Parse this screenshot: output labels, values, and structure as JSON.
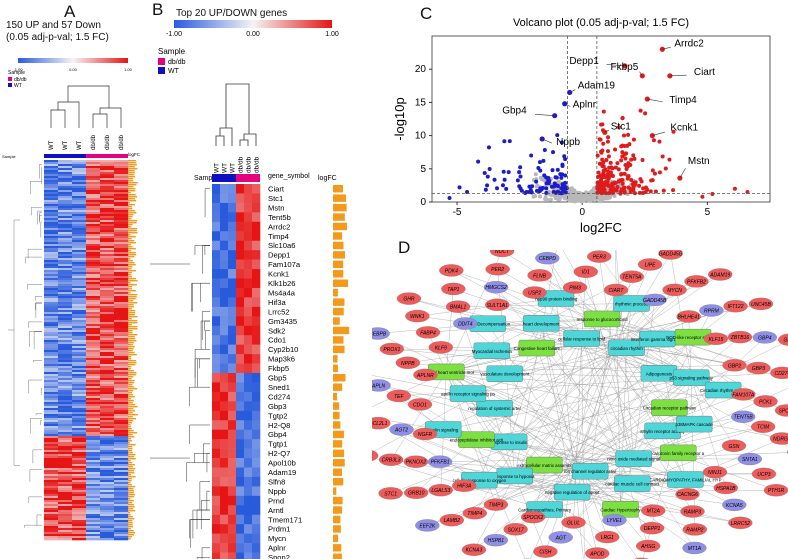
{
  "panelA": {
    "letter": "A",
    "title_line1": "150 UP and 57 Down",
    "title_line2": "(0.05 adj-p-val; 1.5 FC)",
    "scale_ticks": [
      "-1.00",
      "0.00",
      "1.00"
    ],
    "legend_title": "Sample",
    "legend_items": [
      {
        "label": "db/db",
        "color": "#e6007e"
      },
      {
        "label": "WT",
        "color": "#1010c0"
      }
    ],
    "col_labels": [
      "WT",
      "WT",
      "WT",
      "db/db",
      "db/db",
      "db/db"
    ],
    "sample_label": "Sample",
    "logfc_label": "logFC"
  },
  "panelB": {
    "letter": "B",
    "title": "Top 20 UP/DOWN genes",
    "scale_ticks": [
      "-1.00",
      "0.00",
      "1.00"
    ],
    "legend_title": "Sample",
    "legend_items": [
      {
        "label": "db/db",
        "color": "#e6007e"
      },
      {
        "label": "WT",
        "color": "#1010c0"
      }
    ],
    "col_labels": [
      "WT",
      "WT",
      "WT",
      "db/db",
      "db/db",
      "db/db"
    ],
    "sample_label": "Sample",
    "gene_header": "gene_symbol",
    "logfc_label": "logFC",
    "genes": [
      "Ciart",
      "Stc1",
      "Mstn",
      "Tent5b",
      "Arrdc2",
      "Timp4",
      "Slc10a6",
      "Depp1",
      "Fam107a",
      "Kcnk1",
      "Klk1b26",
      "Ms4a4a",
      "Hif3a",
      "Lrrc52",
      "Gm3435",
      "Sdk2",
      "Cdo1",
      "Cyp2b10",
      "Map3k6",
      "Fkbp5",
      "Gbp5",
      "Sned1",
      "Cd274",
      "Gbp3",
      "Tgtp2",
      "H2-Q8",
      "Gbp4",
      "Tgtp1",
      "H2-Q7",
      "Apol10b",
      "Adam19",
      "Slfn8",
      "Nppb",
      "Prnd",
      "Arntl",
      "Tmem171",
      "Prdm1",
      "Mycn",
      "Aplnr",
      "Spon2"
    ]
  },
  "panelC": {
    "letter": "C",
    "chart_data": {
      "type": "scatter",
      "title": "Volcano plot (0.05 adj-p-val; 1.5 FC)",
      "xlabel": "log2FC",
      "ylabel": "-log10p",
      "xlim": [
        -6,
        7.5
      ],
      "ylim": [
        0,
        25
      ],
      "xticks": [
        -5,
        0,
        5
      ],
      "yticks": [
        0,
        5,
        10,
        15,
        20
      ],
      "vlines": [
        -0.585,
        0.585
      ],
      "hline": 1.3,
      "colors": {
        "up": "#e01b1b",
        "down": "#1c1cc8",
        "ns": "#b8b8b8"
      },
      "labeled_points": [
        {
          "gene": "Depp1",
          "x": 1.7,
          "y": 20.5
        },
        {
          "gene": "Arrdc2",
          "x": 3.2,
          "y": 23.0
        },
        {
          "gene": "Ciart",
          "x": 3.5,
          "y": 19.0
        },
        {
          "gene": "Fkbp5",
          "x": 2.4,
          "y": 19.0
        },
        {
          "gene": "Timp4",
          "x": 2.6,
          "y": 15.5
        },
        {
          "gene": "Adam19",
          "x": -0.5,
          "y": 16.5
        },
        {
          "gene": "Aplnr",
          "x": -0.7,
          "y": 14.8
        },
        {
          "gene": "Gbp4",
          "x": -1.1,
          "y": 13.0
        },
        {
          "gene": "Stc1",
          "x": 0.9,
          "y": 10.5
        },
        {
          "gene": "Kcnk1",
          "x": 2.8,
          "y": 10.0
        },
        {
          "gene": "Nppb",
          "x": -1.6,
          "y": 9.5
        },
        {
          "gene": "Mstn",
          "x": 3.9,
          "y": 3.6
        }
      ],
      "note_points": "Dense clouds of non-significant grey points near zero, significant blue (down) points on the left and red (up) points on the right."
    }
  },
  "panelD": {
    "letter": "D",
    "pathways": [
      "amylin receptor activity",
      "calcitonin family receptor activity",
      "CARDIOMYOPATHY, FAMILIAL HYPERTROPHIC",
      "nitric oxide mediated signal transduction",
      "cardiac muscle cell contraction",
      "Cardiac Hypertrophy",
      "ion channel regulator activity",
      "negative regulation of apoptotic process",
      "Cardiomyopathies, Primary",
      "extracellular matrix assembly",
      "response to hypoxia",
      "cellular response to oxygen levels",
      "response to insulin",
      "endopeptidase inhibitor activity",
      "apelin signaling",
      "regulation of systemic arterial blood pressure",
      "apelin receptor signaling pathway",
      "abnormal heart ventricle morphology",
      "vasculature development",
      "Myocardial Ischemia",
      "Heart Decompensation",
      "Congestive heart failure",
      "heart development",
      "Hsp90 protein binding",
      "cellular response to lipid",
      "response to glucocorticoid",
      "rhythmic process",
      "circadian rhythm",
      "Interferon gamma signaling",
      "NOD-like receptor signaling pathway",
      "Adipogenesis",
      "p53 signaling pathway",
      "Circadian rhythm genes",
      "Circadian receptor pathway",
      "p38MAPK cascade"
    ],
    "genes": [
      "TENT5B",
      "TCIM",
      "NDRG2",
      "TBC1D1",
      "GSN",
      "SNTA1",
      "UCP3",
      "PTH1R",
      "NINJ1",
      "HSPA1B",
      "KCNA5",
      "LRRC52",
      "CACNG6",
      "RAMP3",
      "RAMP2",
      "MT1A",
      "MT2A",
      "DEPP1",
      "AHSG",
      "LMO2",
      "LYVE1",
      "LRG1",
      "APOD",
      "ADGRG1",
      "GLUL",
      "AGT",
      "CISH",
      "GPT",
      "SPOCK2",
      "SOX17",
      "HSPB1",
      "KCNA3",
      "TIMP3",
      "TIMP4",
      "LAMB2",
      "EEF2K",
      "HIF3A",
      "LGALS3",
      "GRB10",
      "STC1",
      "PFKFB1",
      "PKNOX2",
      "CRB3L3",
      "SGK1",
      "NGFR",
      "AGT2",
      "BCL2L1",
      "FAS",
      "CDO1",
      "TEF",
      "APLN",
      "BNIP3",
      "APLNR",
      "NPPB",
      "PROX1",
      "CEBPB",
      "KLF9",
      "FABP4",
      "WNK1",
      "GHR",
      "DDIT4",
      "BMAL1",
      "TAP1",
      "PDK4",
      "SULT1A1",
      "HMGCS2",
      "PER2",
      "NOCT",
      "USP2",
      "FLNB",
      "CEBPD",
      "HLA-DQA1",
      "PIM3",
      "ID1",
      "PER3",
      "DBP",
      "CIART",
      "TENT5A",
      "LIPE",
      "GADD45G",
      "GADD45B",
      "MYCN",
      "PFKFB2",
      "ADAM19",
      "BHLHE41",
      "RPRM",
      "IFT122",
      "UNC45B",
      "KLF15",
      "ZBTB16",
      "GBP4",
      "GBP5",
      "GBP2",
      "GBP3",
      "CD274",
      "STAT1",
      "FAM107A",
      "PCK1",
      "SPON2"
    ]
  }
}
